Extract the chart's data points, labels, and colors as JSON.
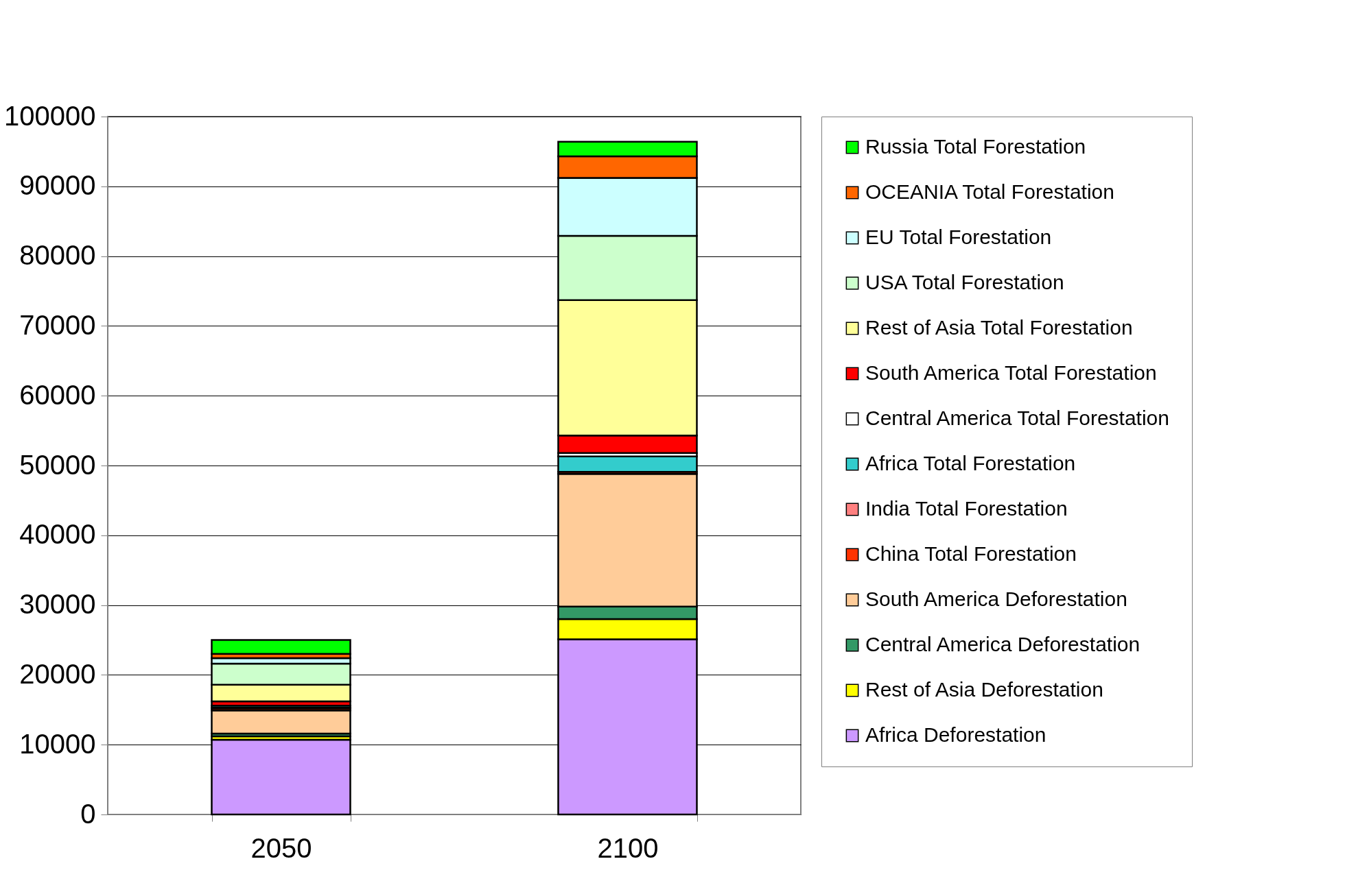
{
  "chart_data": {
    "type": "bar",
    "stacked": true,
    "categories": [
      "2050",
      "2100"
    ],
    "ylim": [
      0,
      100000
    ],
    "yticks": [
      0,
      10000,
      20000,
      30000,
      40000,
      50000,
      60000,
      70000,
      80000,
      90000,
      100000
    ],
    "grid": "y",
    "legend": "right",
    "series": [
      {
        "name": "Africa Deforestation",
        "color": "#cc99ff",
        "values": [
          10700,
          25100
        ]
      },
      {
        "name": "Rest of Asia Deforestation",
        "color": "#ffff00",
        "values": [
          500,
          2900
        ]
      },
      {
        "name": "Central America Deforestation",
        "color": "#339966",
        "values": [
          400,
          1800
        ]
      },
      {
        "name": "South America Deforestation",
        "color": "#ffcc99",
        "values": [
          3300,
          19000
        ]
      },
      {
        "name": "China Total Forestation",
        "color": "#ff3300",
        "values": [
          300,
          300
        ]
      },
      {
        "name": "India Total Forestation",
        "color": "#ff8080",
        "values": [
          100,
          null
        ]
      },
      {
        "name": "Africa Total Forestation",
        "color": "#33cccc",
        "values": [
          300,
          2200
        ]
      },
      {
        "name": "Central America Total Forestation",
        "color": "#ffffff",
        "values": [
          null,
          500
        ]
      },
      {
        "name": "South America Total Forestation",
        "color": "#ff0000",
        "values": [
          600,
          2500
        ]
      },
      {
        "name": "Rest of Asia Total Forestation",
        "color": "#ffff99",
        "values": [
          2400,
          19400
        ]
      },
      {
        "name": "USA Total Forestation",
        "color": "#ccffcc",
        "values": [
          3000,
          9200
        ]
      },
      {
        "name": "EU Total Forestation",
        "color": "#ccffff",
        "values": [
          800,
          8300
        ]
      },
      {
        "name": "OCEANIA Total Forestation",
        "color": "#ff6600",
        "values": [
          600,
          3100
        ]
      },
      {
        "name": "Russia Total Forestation",
        "color": "#00ff00",
        "values": [
          2000,
          2100
        ]
      }
    ]
  }
}
